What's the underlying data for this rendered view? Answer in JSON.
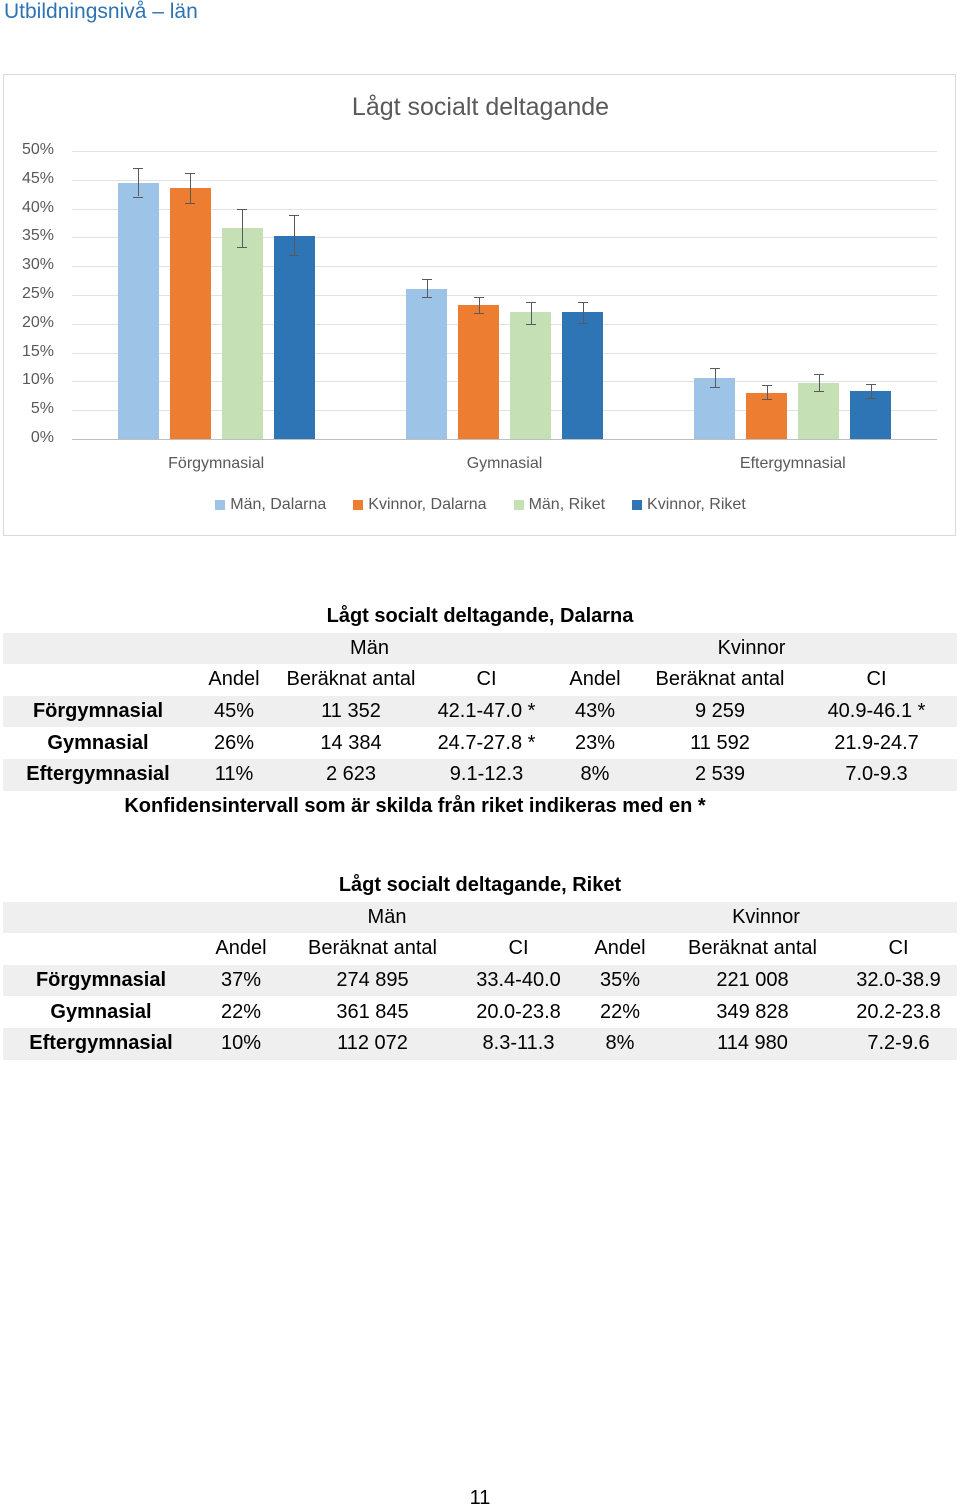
{
  "page": {
    "heading": "Utbildningsnivå – län",
    "page_number": "11"
  },
  "chart_data": {
    "type": "bar",
    "title": "Lågt socialt deltagande",
    "categories": [
      "Förgymnasial",
      "Gymnasial",
      "Eftergymnasial"
    ],
    "ylim": [
      0,
      50
    ],
    "ytick_values": [
      0,
      5,
      10,
      15,
      20,
      25,
      30,
      35,
      40,
      45,
      50
    ],
    "yticks": [
      "0%",
      "5%",
      "10%",
      "15%",
      "20%",
      "25%",
      "30%",
      "35%",
      "40%",
      "45%",
      "50%"
    ],
    "grid": true,
    "legend_position": "bottom",
    "series": [
      {
        "name": "Män, Dalarna",
        "color": "#9dc3e6",
        "values": [
          44.5,
          26.0,
          10.6
        ],
        "ci": [
          [
            42.1,
            47.0
          ],
          [
            24.7,
            27.8
          ],
          [
            9.1,
            12.3
          ]
        ]
      },
      {
        "name": "Kvinnor, Dalarna",
        "color": "#ed7d31",
        "values": [
          43.5,
          23.2,
          8.0
        ],
        "ci": [
          [
            40.9,
            46.1
          ],
          [
            21.9,
            24.7
          ],
          [
            7.0,
            9.3
          ]
        ]
      },
      {
        "name": "Män, Riket",
        "color": "#c5e0b4",
        "values": [
          36.7,
          22.0,
          9.7
        ],
        "ci": [
          [
            33.4,
            40.0
          ],
          [
            20.0,
            23.8
          ],
          [
            8.3,
            11.3
          ]
        ]
      },
      {
        "name": "Kvinnor, Riket",
        "color": "#2e75b6",
        "values": [
          35.3,
          22.0,
          8.3
        ],
        "ci": [
          [
            32.0,
            38.9
          ],
          [
            20.2,
            23.8
          ],
          [
            7.2,
            9.6
          ]
        ]
      }
    ]
  },
  "table_dalarna": {
    "title": "Lågt socialt deltagande, Dalarna",
    "group_men": "Män",
    "group_women": "Kvinnor",
    "headers": [
      "Andel",
      "Beräknat antal",
      "CI",
      "Andel",
      "Beräknat antal",
      "CI"
    ],
    "rows": [
      {
        "label": "Förgymnasial",
        "cells": [
          "45%",
          "11 352",
          "42.1-47.0 *",
          "43%",
          "9 259",
          "40.9-46.1 *"
        ]
      },
      {
        "label": "Gymnasial",
        "cells": [
          "26%",
          "14 384",
          "24.7-27.8 *",
          "23%",
          "11 592",
          "21.9-24.7"
        ]
      },
      {
        "label": "Eftergymnasial",
        "cells": [
          "11%",
          "2 623",
          "9.1-12.3",
          "8%",
          "2 539",
          "7.0-9.3"
        ]
      }
    ],
    "note": "Konfidensintervall som är skilda från riket indikeras med en *"
  },
  "table_riket": {
    "title": "Lågt socialt deltagande, Riket",
    "group_men": "Män",
    "group_women": "Kvinnor",
    "headers": [
      "Andel",
      "Beräknat antal",
      "CI",
      "Andel",
      "Beräknat antal",
      "CI"
    ],
    "rows": [
      {
        "label": "Förgymnasial",
        "cells": [
          "37%",
          "274 895",
          "33.4-40.0",
          "35%",
          "221 008",
          "32.0-38.9"
        ]
      },
      {
        "label": "Gymnasial",
        "cells": [
          "22%",
          "361 845",
          "20.0-23.8",
          "22%",
          "349 828",
          "20.2-23.8"
        ]
      },
      {
        "label": "Eftergymnasial",
        "cells": [
          "10%",
          "112 072",
          "8.3-11.3",
          "8%",
          "114 980",
          "7.2-9.6"
        ]
      }
    ]
  }
}
